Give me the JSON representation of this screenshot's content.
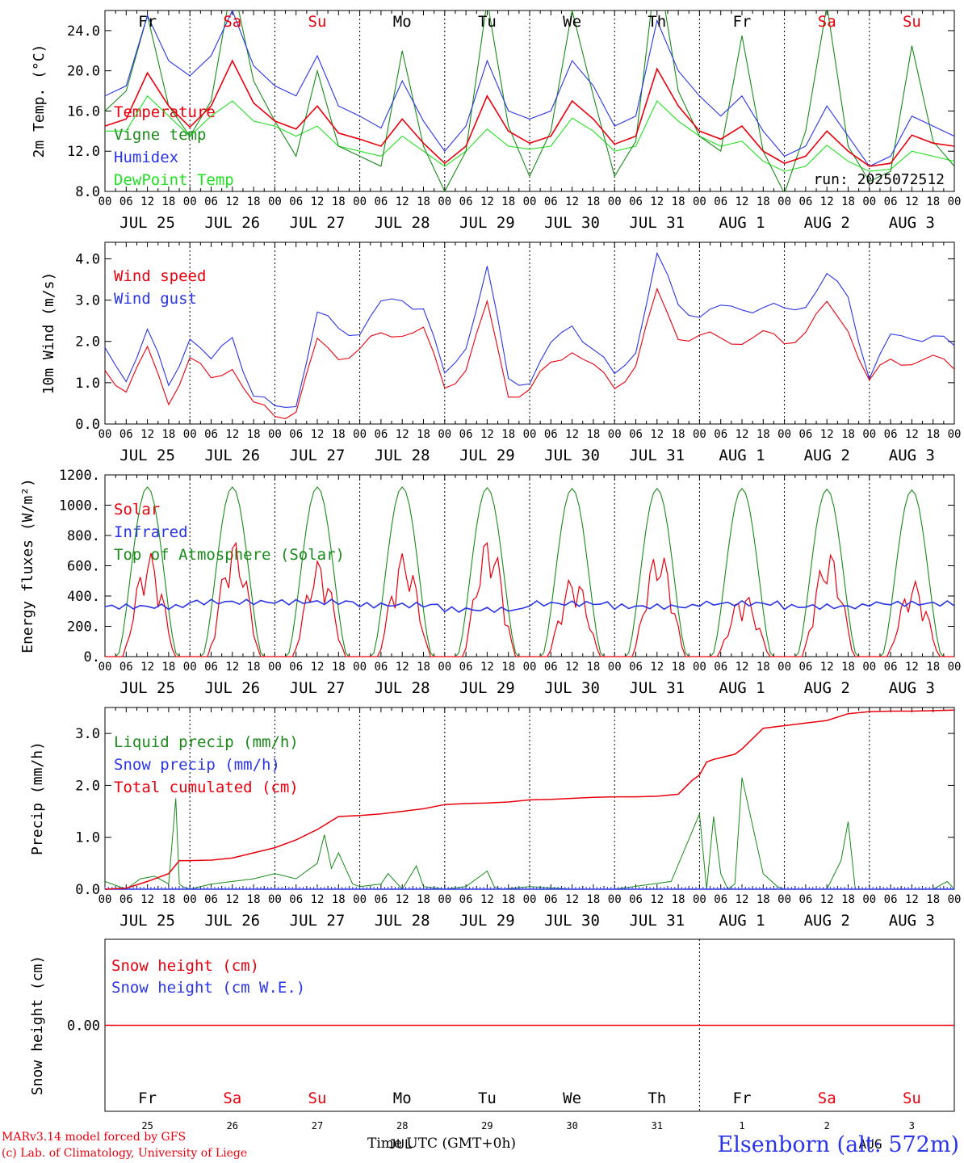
{
  "colors": {
    "red": "#e8000d",
    "green": "#1a8a1a",
    "blue": "#2a34e8",
    "lightgreen": "#22e022",
    "black": "#000000"
  },
  "days": [
    "Fr",
    "Sa",
    "Su",
    "Mo",
    "Tu",
    "We",
    "Th",
    "Fr",
    "Sa",
    "Su"
  ],
  "weekend_days": [
    "Sa",
    "Su"
  ],
  "date_labels": [
    "JUL 25",
    "JUL 26",
    "JUL 27",
    "JUL 28",
    "JUL 29",
    "JUL 30",
    "JUL 31",
    "AUG  1",
    "AUG  2",
    "AUG  3"
  ],
  "day_numbers": [
    "25",
    "26",
    "27",
    "28",
    "29",
    "30",
    "31",
    "1",
    "2",
    "3"
  ],
  "hour_ticks": [
    "00",
    "06",
    "12",
    "18"
  ],
  "footer": {
    "credit_line1": "MARv3.14 model forced by GFS",
    "credit_line2": "(c) Lab. of Climatology, University of Liege",
    "x_title": "Time UTC (GMT+0h)",
    "x_month_overlay": "JUL",
    "x_month_overlay2": "AUG",
    "station": "Elsenborn (alt: 572m)"
  },
  "chart_data": [
    {
      "type": "line",
      "ylabel": "2m Temp. (°C)",
      "ylim": [
        8,
        26
      ],
      "yticks": [
        "8.0",
        "12.0",
        "16.0",
        "20.0",
        "24.0"
      ],
      "x_unit": "hours since JUL 25 00 UTC",
      "legend_placement": "left",
      "annotation": "run: 2025072512",
      "series": [
        {
          "name": "Temperature",
          "color": "red",
          "x": [
            0,
            6,
            12,
            18,
            24,
            30,
            36,
            42,
            48,
            54,
            60,
            66,
            72,
            78,
            84,
            90,
            96,
            102,
            108,
            114,
            120,
            126,
            132,
            138,
            144,
            150,
            156,
            162,
            168,
            174,
            180,
            186,
            192,
            198,
            204,
            210,
            216,
            222,
            228,
            234,
            240
          ],
          "values": [
            14.5,
            15.2,
            19.8,
            16.5,
            14.4,
            16.5,
            21.0,
            16.8,
            15.0,
            14.2,
            16.5,
            13.8,
            13.2,
            12.5,
            15.2,
            12.8,
            10.8,
            12.5,
            17.5,
            14.0,
            12.8,
            13.5,
            17.0,
            15.2,
            12.7,
            13.5,
            20.2,
            16.5,
            14.0,
            13.2,
            14.5,
            12.0,
            10.8,
            11.5,
            14.0,
            12.0,
            10.5,
            10.8,
            13.6,
            12.8,
            12.5
          ]
        },
        {
          "name": "Vigne temp",
          "color": "green",
          "x": [
            0,
            6,
            12,
            18,
            24,
            30,
            36,
            42,
            48,
            54,
            60,
            66,
            72,
            78,
            84,
            90,
            96,
            102,
            108,
            114,
            120,
            126,
            132,
            138,
            144,
            150,
            156,
            162,
            168,
            174,
            180,
            186,
            192,
            198,
            204,
            210,
            216,
            222,
            228,
            234,
            240
          ],
          "values": [
            16.0,
            18.0,
            25.5,
            16.5,
            13.5,
            17.0,
            29.0,
            19.0,
            15.0,
            11.5,
            20.0,
            12.5,
            11.5,
            10.5,
            22.0,
            12.5,
            8.0,
            12.0,
            27.0,
            14.5,
            9.5,
            14.0,
            26.0,
            17.5,
            9.5,
            13.0,
            31.0,
            18.0,
            13.5,
            12.0,
            23.5,
            12.0,
            7.8,
            14.0,
            26.5,
            12.5,
            9.0,
            10.0,
            22.5,
            13.0,
            10.5
          ]
        },
        {
          "name": "Humidex",
          "color": "blue",
          "x": [
            0,
            6,
            12,
            18,
            24,
            30,
            36,
            42,
            48,
            54,
            60,
            66,
            72,
            78,
            84,
            90,
            96,
            102,
            108,
            114,
            120,
            126,
            132,
            138,
            144,
            150,
            156,
            162,
            168,
            174,
            180,
            186,
            192,
            198,
            204,
            210,
            216,
            222,
            228,
            234,
            240
          ],
          "values": [
            17.5,
            18.5,
            25.5,
            21.0,
            19.5,
            21.5,
            26.0,
            20.5,
            18.5,
            17.5,
            21.5,
            16.5,
            15.5,
            14.3,
            19.0,
            15.0,
            12.0,
            14.5,
            21.0,
            16.0,
            15.2,
            16.0,
            21.0,
            18.5,
            14.5,
            15.5,
            25.0,
            20.0,
            17.5,
            15.5,
            17.5,
            14.0,
            11.5,
            12.5,
            16.5,
            13.5,
            10.5,
            11.5,
            15.5,
            14.5,
            13.5
          ]
        },
        {
          "name": "DewPoint Temp",
          "color": "lightgreen",
          "x": [
            0,
            6,
            12,
            18,
            24,
            30,
            36,
            42,
            48,
            54,
            60,
            66,
            72,
            78,
            84,
            90,
            96,
            102,
            108,
            114,
            120,
            126,
            132,
            138,
            144,
            150,
            156,
            162,
            168,
            174,
            180,
            186,
            192,
            198,
            204,
            210,
            216,
            222,
            228,
            234,
            240
          ],
          "values": [
            14.0,
            14.0,
            17.5,
            15.5,
            13.5,
            15.5,
            17.0,
            15.0,
            14.5,
            13.5,
            14.5,
            12.5,
            12.0,
            11.5,
            13.5,
            12.0,
            10.5,
            12.0,
            14.2,
            12.5,
            12.2,
            12.5,
            15.3,
            14.0,
            12.0,
            12.5,
            17.0,
            15.0,
            13.5,
            12.5,
            13.0,
            11.0,
            10.0,
            10.5,
            12.6,
            11.0,
            10.0,
            10.2,
            12.0,
            11.5,
            11.0
          ]
        }
      ]
    },
    {
      "type": "line",
      "ylabel": "10m Wind (m/s)",
      "ylim": [
        0,
        4.4
      ],
      "yticks": [
        "0.0",
        "1.0",
        "2.0",
        "3.0",
        "4.0"
      ],
      "legend_placement": "left",
      "series": [
        {
          "name": "Wind speed",
          "color": "red",
          "x": [
            0,
            6,
            12,
            18,
            24,
            30,
            36,
            42,
            48,
            54,
            60,
            66,
            72,
            78,
            84,
            90,
            96,
            102,
            108,
            114,
            120,
            126,
            132,
            138,
            144,
            150,
            156,
            162,
            168,
            174,
            180,
            186,
            192,
            198,
            204,
            210,
            216,
            222,
            228,
            234,
            240
          ],
          "values": [
            1.3,
            0.9,
            1.7,
            0.6,
            1.6,
            1.0,
            1.5,
            0.4,
            0.2,
            0.4,
            1.9,
            1.7,
            1.8,
            2.1,
            2.3,
            2.2,
            0.9,
            1.4,
            2.8,
            0.8,
            0.8,
            1.4,
            1.9,
            1.3,
            0.9,
            1.5,
            3.1,
            2.2,
            2.1,
            2.0,
            2.1,
            2.1,
            2.0,
            2.3,
            2.8,
            2.4,
            1.0,
            1.5,
            1.6,
            1.5,
            1.4
          ]
        },
        {
          "name": "Wind gust",
          "color": "blue",
          "x": [
            0,
            6,
            12,
            18,
            24,
            30,
            36,
            42,
            48,
            54,
            60,
            66,
            72,
            78,
            84,
            90,
            96,
            102,
            108,
            114,
            120,
            126,
            132,
            138,
            144,
            150,
            156,
            162,
            168,
            174,
            180,
            186,
            192,
            198,
            204,
            210,
            216,
            222,
            228,
            234,
            240
          ],
          "values": [
            1.7,
            1.2,
            2.2,
            0.9,
            2.2,
            1.4,
            2.2,
            0.7,
            0.3,
            0.6,
            2.6,
            2.3,
            2.3,
            2.8,
            3.1,
            2.8,
            1.1,
            2.0,
            3.7,
            1.1,
            1.1,
            1.8,
            2.5,
            1.8,
            1.1,
            1.9,
            4.0,
            2.9,
            2.7,
            2.7,
            2.9,
            2.8,
            2.7,
            3.0,
            3.5,
            3.1,
            1.2,
            2.0,
            2.2,
            2.1,
            1.8
          ]
        }
      ]
    },
    {
      "type": "line",
      "ylabel": "Energy fluxes (W/m²)",
      "ylim": [
        0,
        1200
      ],
      "yticks": [
        "0.",
        "200.",
        "400.",
        "600.",
        "800.",
        "1000.",
        "1200."
      ],
      "legend_placement": "left",
      "series": [
        {
          "name": "Solar",
          "color": "red",
          "day_peaks": [
            690,
            770,
            640,
            690,
            800,
            540,
            710,
            420,
            700,
            500
          ]
        },
        {
          "name": "Infrared",
          "color": "blue",
          "baseline": 330,
          "values_by_day": [
            330,
            360,
            360,
            340,
            310,
            350,
            330,
            350,
            330,
            350
          ]
        },
        {
          "name": "Top of Atmosphere (Solar)",
          "color": "green",
          "day_peaks": [
            1120,
            1120,
            1120,
            1120,
            1115,
            1110,
            1110,
            1110,
            1105,
            1100
          ]
        }
      ]
    },
    {
      "type": "line",
      "ylabel": "Precip (mm/h)",
      "ylim": [
        0,
        3.5
      ],
      "yticks": [
        "0.0",
        "1.0",
        "2.0",
        "3.0"
      ],
      "legend_placement": "left",
      "series": [
        {
          "name": "Liquid precip (mm/h)",
          "color": "green",
          "x": [
            0,
            6,
            10,
            14,
            18,
            20,
            21,
            22,
            24,
            30,
            36,
            42,
            48,
            54,
            60,
            62,
            64,
            66,
            70,
            72,
            78,
            80,
            84,
            88,
            90,
            96,
            102,
            108,
            110,
            112,
            120,
            132,
            144,
            160,
            168,
            170,
            172,
            174,
            176,
            178,
            180,
            186,
            190,
            192,
            198,
            204,
            208,
            210,
            212,
            216,
            222,
            228,
            234,
            238,
            240
          ],
          "values": [
            0.15,
            0.0,
            0.2,
            0.25,
            0.1,
            1.75,
            0.1,
            0.05,
            0.0,
            0.1,
            0.15,
            0.2,
            0.3,
            0.2,
            0.5,
            1.05,
            0.4,
            0.7,
            0.1,
            0.05,
            0.1,
            0.3,
            0.0,
            0.45,
            0.05,
            0.0,
            0.05,
            0.35,
            0.05,
            0.0,
            0.05,
            0.0,
            0.0,
            0.15,
            1.45,
            0.0,
            1.4,
            0.3,
            0.0,
            0.1,
            2.15,
            0.3,
            0.05,
            0.0,
            0.0,
            0.0,
            0.55,
            1.3,
            0.0,
            0.0,
            0.0,
            0.0,
            0.0,
            0.15,
            0.0
          ]
        },
        {
          "name": "Snow precip (mm/h)",
          "color": "blue",
          "x": [
            0,
            240
          ],
          "values": [
            0.0,
            0.0
          ]
        },
        {
          "name": "Total cumulated (cm)",
          "color": "red",
          "x": [
            0,
            6,
            12,
            18,
            21,
            24,
            30,
            36,
            42,
            48,
            54,
            60,
            66,
            72,
            78,
            84,
            90,
            96,
            102,
            108,
            114,
            120,
            126,
            132,
            138,
            144,
            150,
            156,
            162,
            166,
            168,
            170,
            172,
            178,
            180,
            186,
            192,
            198,
            204,
            210,
            216,
            222,
            228,
            234,
            240
          ],
          "values": [
            0.0,
            0.02,
            0.15,
            0.3,
            0.55,
            0.55,
            0.56,
            0.6,
            0.7,
            0.8,
            0.95,
            1.15,
            1.4,
            1.42,
            1.45,
            1.5,
            1.55,
            1.63,
            1.65,
            1.66,
            1.68,
            1.72,
            1.73,
            1.75,
            1.77,
            1.78,
            1.78,
            1.79,
            1.83,
            2.1,
            2.2,
            2.45,
            2.5,
            2.6,
            2.7,
            3.1,
            3.15,
            3.2,
            3.25,
            3.38,
            3.42,
            3.43,
            3.43,
            3.44,
            3.45
          ]
        }
      ]
    },
    {
      "type": "line",
      "ylabel": "Snow height (cm)",
      "ylim": [
        -1,
        1
      ],
      "yticks": [
        "0.00"
      ],
      "legend_placement": "left",
      "series": [
        {
          "name": "Snow height (cm)",
          "color": "red",
          "x": [
            0,
            240
          ],
          "values": [
            0.0,
            0.0
          ]
        },
        {
          "name": "Snow height (cm W.E.)",
          "color": "blue",
          "x": [
            0,
            240
          ],
          "values": [
            0.0,
            0.0
          ]
        }
      ]
    }
  ]
}
